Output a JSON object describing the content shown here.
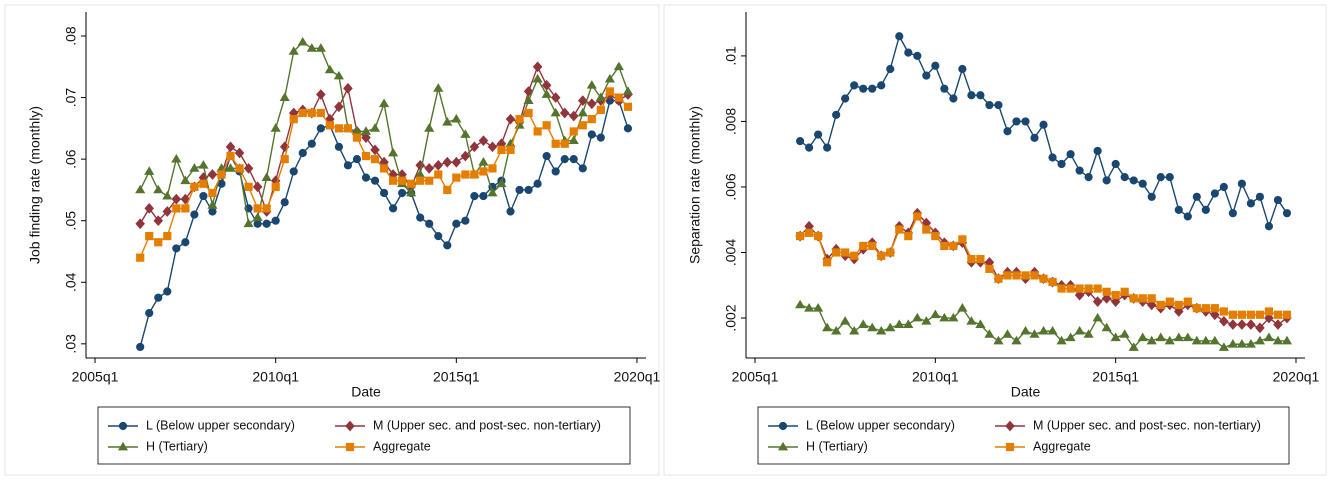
{
  "chart_data": [
    {
      "type": "line",
      "xlabel": "Date",
      "ylabel": "Job finding rate (monthly)",
      "x": [
        "2006q2",
        "2006q3",
        "2006q4",
        "2007q1",
        "2007q2",
        "2007q3",
        "2007q4",
        "2008q1",
        "2008q2",
        "2008q3",
        "2008q4",
        "2009q1",
        "2009q2",
        "2009q3",
        "2009q4",
        "2010q1",
        "2010q2",
        "2010q3",
        "2010q4",
        "2011q1",
        "2011q2",
        "2011q3",
        "2011q4",
        "2012q1",
        "2012q2",
        "2012q3",
        "2012q4",
        "2013q1",
        "2013q2",
        "2013q3",
        "2013q4",
        "2014q1",
        "2014q2",
        "2014q3",
        "2014q4",
        "2015q1",
        "2015q2",
        "2015q3",
        "2015q4",
        "2016q1",
        "2016q2",
        "2016q3",
        "2016q4",
        "2017q1",
        "2017q2",
        "2017q3",
        "2017q4",
        "2018q1",
        "2018q2",
        "2018q3",
        "2018q4",
        "2019q1",
        "2019q2",
        "2019q3",
        "2019q4"
      ],
      "xlim": [
        "2004q4",
        "2020q2"
      ],
      "xticks": [
        "2005q1",
        "2010q1",
        "2015q1",
        "2020q1"
      ],
      "ylim": [
        0.0277,
        0.0839
      ],
      "yticks": [
        {
          "value": 0.03,
          "label": ".03"
        },
        {
          "value": 0.04,
          "label": ".04"
        },
        {
          "value": 0.05,
          "label": ".05"
        },
        {
          "value": 0.06,
          "label": ".06"
        },
        {
          "value": 0.07,
          "label": ".07"
        },
        {
          "value": 0.08,
          "label": ".08"
        }
      ],
      "grid": false,
      "series": [
        {
          "name": "L (Below upper secondary)",
          "color": "#1a476f",
          "marker": "circle",
          "values": [
            0.0295,
            0.035,
            0.0375,
            0.0385,
            0.0455,
            0.0465,
            0.051,
            0.054,
            0.0515,
            0.056,
            0.0605,
            0.058,
            0.052,
            0.0495,
            0.0495,
            0.05,
            0.053,
            0.058,
            0.061,
            0.0625,
            0.065,
            0.0655,
            0.062,
            0.059,
            0.06,
            0.057,
            0.0565,
            0.0545,
            0.052,
            0.0545,
            0.0545,
            0.0505,
            0.0495,
            0.0475,
            0.046,
            0.0495,
            0.05,
            0.054,
            0.054,
            0.0555,
            0.0565,
            0.0515,
            0.055,
            0.055,
            0.056,
            0.0605,
            0.058,
            0.06,
            0.06,
            0.0585,
            0.064,
            0.0635,
            0.0695,
            0.0695,
            0.065
          ]
        },
        {
          "name": "M (Upper sec. and post-sec. non-tertiary)",
          "color": "#90353b",
          "marker": "diamond",
          "values": [
            0.0495,
            0.052,
            0.05,
            0.0515,
            0.0535,
            0.0535,
            0.0555,
            0.057,
            0.0575,
            0.0575,
            0.062,
            0.061,
            0.0585,
            0.0555,
            0.0515,
            0.0565,
            0.062,
            0.0675,
            0.068,
            0.0675,
            0.0705,
            0.0665,
            0.0685,
            0.0715,
            0.0645,
            0.0635,
            0.0615,
            0.0595,
            0.0575,
            0.0575,
            0.0555,
            0.059,
            0.0585,
            0.059,
            0.0595,
            0.0595,
            0.0605,
            0.062,
            0.063,
            0.062,
            0.0625,
            0.0665,
            0.066,
            0.071,
            0.075,
            0.072,
            0.07,
            0.0675,
            0.067,
            0.0695,
            0.069,
            0.0695,
            0.0705,
            0.0695,
            0.0705
          ]
        },
        {
          "name": "H (Tertiary)",
          "color": "#55752f",
          "marker": "triangle",
          "values": [
            0.055,
            0.058,
            0.055,
            0.054,
            0.06,
            0.0565,
            0.0585,
            0.059,
            0.0525,
            0.0585,
            0.0585,
            0.0585,
            0.0495,
            0.0505,
            0.057,
            0.065,
            0.07,
            0.0775,
            0.079,
            0.078,
            0.078,
            0.0745,
            0.0735,
            0.065,
            0.0645,
            0.0645,
            0.065,
            0.069,
            0.061,
            0.056,
            0.0545,
            0.0575,
            0.065,
            0.0715,
            0.066,
            0.0665,
            0.064,
            0.0575,
            0.0595,
            0.0545,
            0.056,
            0.0625,
            0.0655,
            0.0695,
            0.073,
            0.0705,
            0.0675,
            0.063,
            0.063,
            0.0675,
            0.072,
            0.07,
            0.073,
            0.075,
            0.071
          ]
        },
        {
          "name": "Aggregate",
          "color": "#e37e00",
          "marker": "square",
          "values": [
            0.044,
            0.0475,
            0.0465,
            0.0475,
            0.052,
            0.052,
            0.0555,
            0.056,
            0.0545,
            0.0575,
            0.0605,
            0.0585,
            0.0555,
            0.052,
            0.052,
            0.0555,
            0.06,
            0.0665,
            0.0675,
            0.0675,
            0.0675,
            0.0655,
            0.065,
            0.065,
            0.0635,
            0.0605,
            0.06,
            0.0585,
            0.0565,
            0.0565,
            0.056,
            0.0565,
            0.0565,
            0.0575,
            0.055,
            0.057,
            0.0575,
            0.0575,
            0.058,
            0.0585,
            0.0615,
            0.0615,
            0.0665,
            0.0675,
            0.0645,
            0.0655,
            0.0625,
            0.0625,
            0.0645,
            0.0655,
            0.0665,
            0.068,
            0.071,
            0.07,
            0.0685
          ]
        }
      ]
    },
    {
      "type": "line",
      "xlabel": "Date",
      "ylabel": "Separation rate (monthly)",
      "x": [
        "2006q2",
        "2006q3",
        "2006q4",
        "2007q1",
        "2007q2",
        "2007q3",
        "2007q4",
        "2008q1",
        "2008q2",
        "2008q3",
        "2008q4",
        "2009q1",
        "2009q2",
        "2009q3",
        "2009q4",
        "2010q1",
        "2010q2",
        "2010q3",
        "2010q4",
        "2011q1",
        "2011q2",
        "2011q3",
        "2011q4",
        "2012q1",
        "2012q2",
        "2012q3",
        "2012q4",
        "2013q1",
        "2013q2",
        "2013q3",
        "2013q4",
        "2014q1",
        "2014q2",
        "2014q3",
        "2014q4",
        "2015q1",
        "2015q2",
        "2015q3",
        "2015q4",
        "2016q1",
        "2016q2",
        "2016q3",
        "2016q4",
        "2017q1",
        "2017q2",
        "2017q3",
        "2017q4",
        "2018q1",
        "2018q2",
        "2018q3",
        "2018q4",
        "2019q1",
        "2019q2",
        "2019q3",
        "2019q4"
      ],
      "xlim": [
        "2004q4",
        "2020q2"
      ],
      "xticks": [
        "2005q1",
        "2010q1",
        "2015q1",
        "2020q1"
      ],
      "ylim": [
        0.00078,
        0.01134
      ],
      "yticks": [
        {
          "value": 0.002,
          "label": ".002"
        },
        {
          "value": 0.004,
          "label": ".004"
        },
        {
          "value": 0.006,
          "label": ".006"
        },
        {
          "value": 0.008,
          "label": ".008"
        },
        {
          "value": 0.01,
          "label": ".01"
        }
      ],
      "grid": false,
      "series": [
        {
          "name": "L (Below upper secondary)",
          "color": "#1a476f",
          "marker": "circle",
          "values": [
            0.0074,
            0.0072,
            0.0076,
            0.0072,
            0.0082,
            0.0087,
            0.0091,
            0.009,
            0.009,
            0.0091,
            0.0096,
            0.0106,
            0.0101,
            0.01,
            0.0094,
            0.0097,
            0.009,
            0.0087,
            0.0096,
            0.0088,
            0.0088,
            0.0085,
            0.0085,
            0.0077,
            0.008,
            0.008,
            0.0075,
            0.0079,
            0.0069,
            0.0067,
            0.007,
            0.0065,
            0.0063,
            0.0071,
            0.0062,
            0.0067,
            0.0063,
            0.0062,
            0.0061,
            0.0057,
            0.0063,
            0.0063,
            0.0053,
            0.0051,
            0.0057,
            0.0053,
            0.0058,
            0.006,
            0.0052,
            0.0061,
            0.0055,
            0.0057,
            0.0048,
            0.0056,
            0.0052
          ]
        },
        {
          "name": "M (Upper sec. and post-sec. non-tertiary)",
          "color": "#90353b",
          "marker": "diamond",
          "values": [
            0.0045,
            0.0048,
            0.0045,
            0.0038,
            0.0041,
            0.0039,
            0.0038,
            0.0041,
            0.0043,
            0.0039,
            0.004,
            0.0048,
            0.0046,
            0.0052,
            0.0049,
            0.0046,
            0.0043,
            0.0042,
            0.0043,
            0.0037,
            0.0037,
            0.0037,
            0.0032,
            0.0034,
            0.0034,
            0.0032,
            0.0034,
            0.0032,
            0.0031,
            0.003,
            0.003,
            0.0027,
            0.0028,
            0.0025,
            0.0026,
            0.0025,
            0.0027,
            0.0026,
            0.0025,
            0.0024,
            0.0023,
            0.0024,
            0.0022,
            0.0024,
            0.0023,
            0.0022,
            0.0021,
            0.0019,
            0.0018,
            0.0018,
            0.0018,
            0.0017,
            0.002,
            0.0018,
            0.002
          ]
        },
        {
          "name": "H (Tertiary)",
          "color": "#55752f",
          "marker": "triangle",
          "values": [
            0.0024,
            0.0023,
            0.0023,
            0.0017,
            0.0016,
            0.0019,
            0.0016,
            0.0018,
            0.0017,
            0.0016,
            0.0017,
            0.0018,
            0.0018,
            0.002,
            0.0019,
            0.0021,
            0.002,
            0.002,
            0.0023,
            0.0019,
            0.0018,
            0.0015,
            0.0013,
            0.0015,
            0.0013,
            0.0016,
            0.0015,
            0.0016,
            0.0016,
            0.0013,
            0.0014,
            0.0016,
            0.0015,
            0.002,
            0.0017,
            0.0014,
            0.0015,
            0.0011,
            0.0014,
            0.0013,
            0.0014,
            0.0013,
            0.0014,
            0.0014,
            0.0013,
            0.0013,
            0.0013,
            0.0011,
            0.0012,
            0.0012,
            0.0012,
            0.0013,
            0.0014,
            0.0013,
            0.0013
          ]
        },
        {
          "name": "Aggregate",
          "color": "#e37e00",
          "marker": "square",
          "values": [
            0.0045,
            0.0046,
            0.0045,
            0.0037,
            0.004,
            0.004,
            0.0039,
            0.0042,
            0.0042,
            0.0039,
            0.004,
            0.0047,
            0.0045,
            0.0051,
            0.0047,
            0.0045,
            0.0042,
            0.0042,
            0.0044,
            0.0038,
            0.0038,
            0.0035,
            0.0032,
            0.0033,
            0.0033,
            0.0033,
            0.0033,
            0.0032,
            0.0031,
            0.0029,
            0.0029,
            0.0029,
            0.0029,
            0.0029,
            0.0028,
            0.0027,
            0.0028,
            0.0026,
            0.0026,
            0.0026,
            0.0024,
            0.0025,
            0.0024,
            0.0025,
            0.0023,
            0.0023,
            0.0023,
            0.0022,
            0.0021,
            0.0021,
            0.0021,
            0.0021,
            0.0022,
            0.0021,
            0.0021
          ]
        }
      ]
    }
  ]
}
